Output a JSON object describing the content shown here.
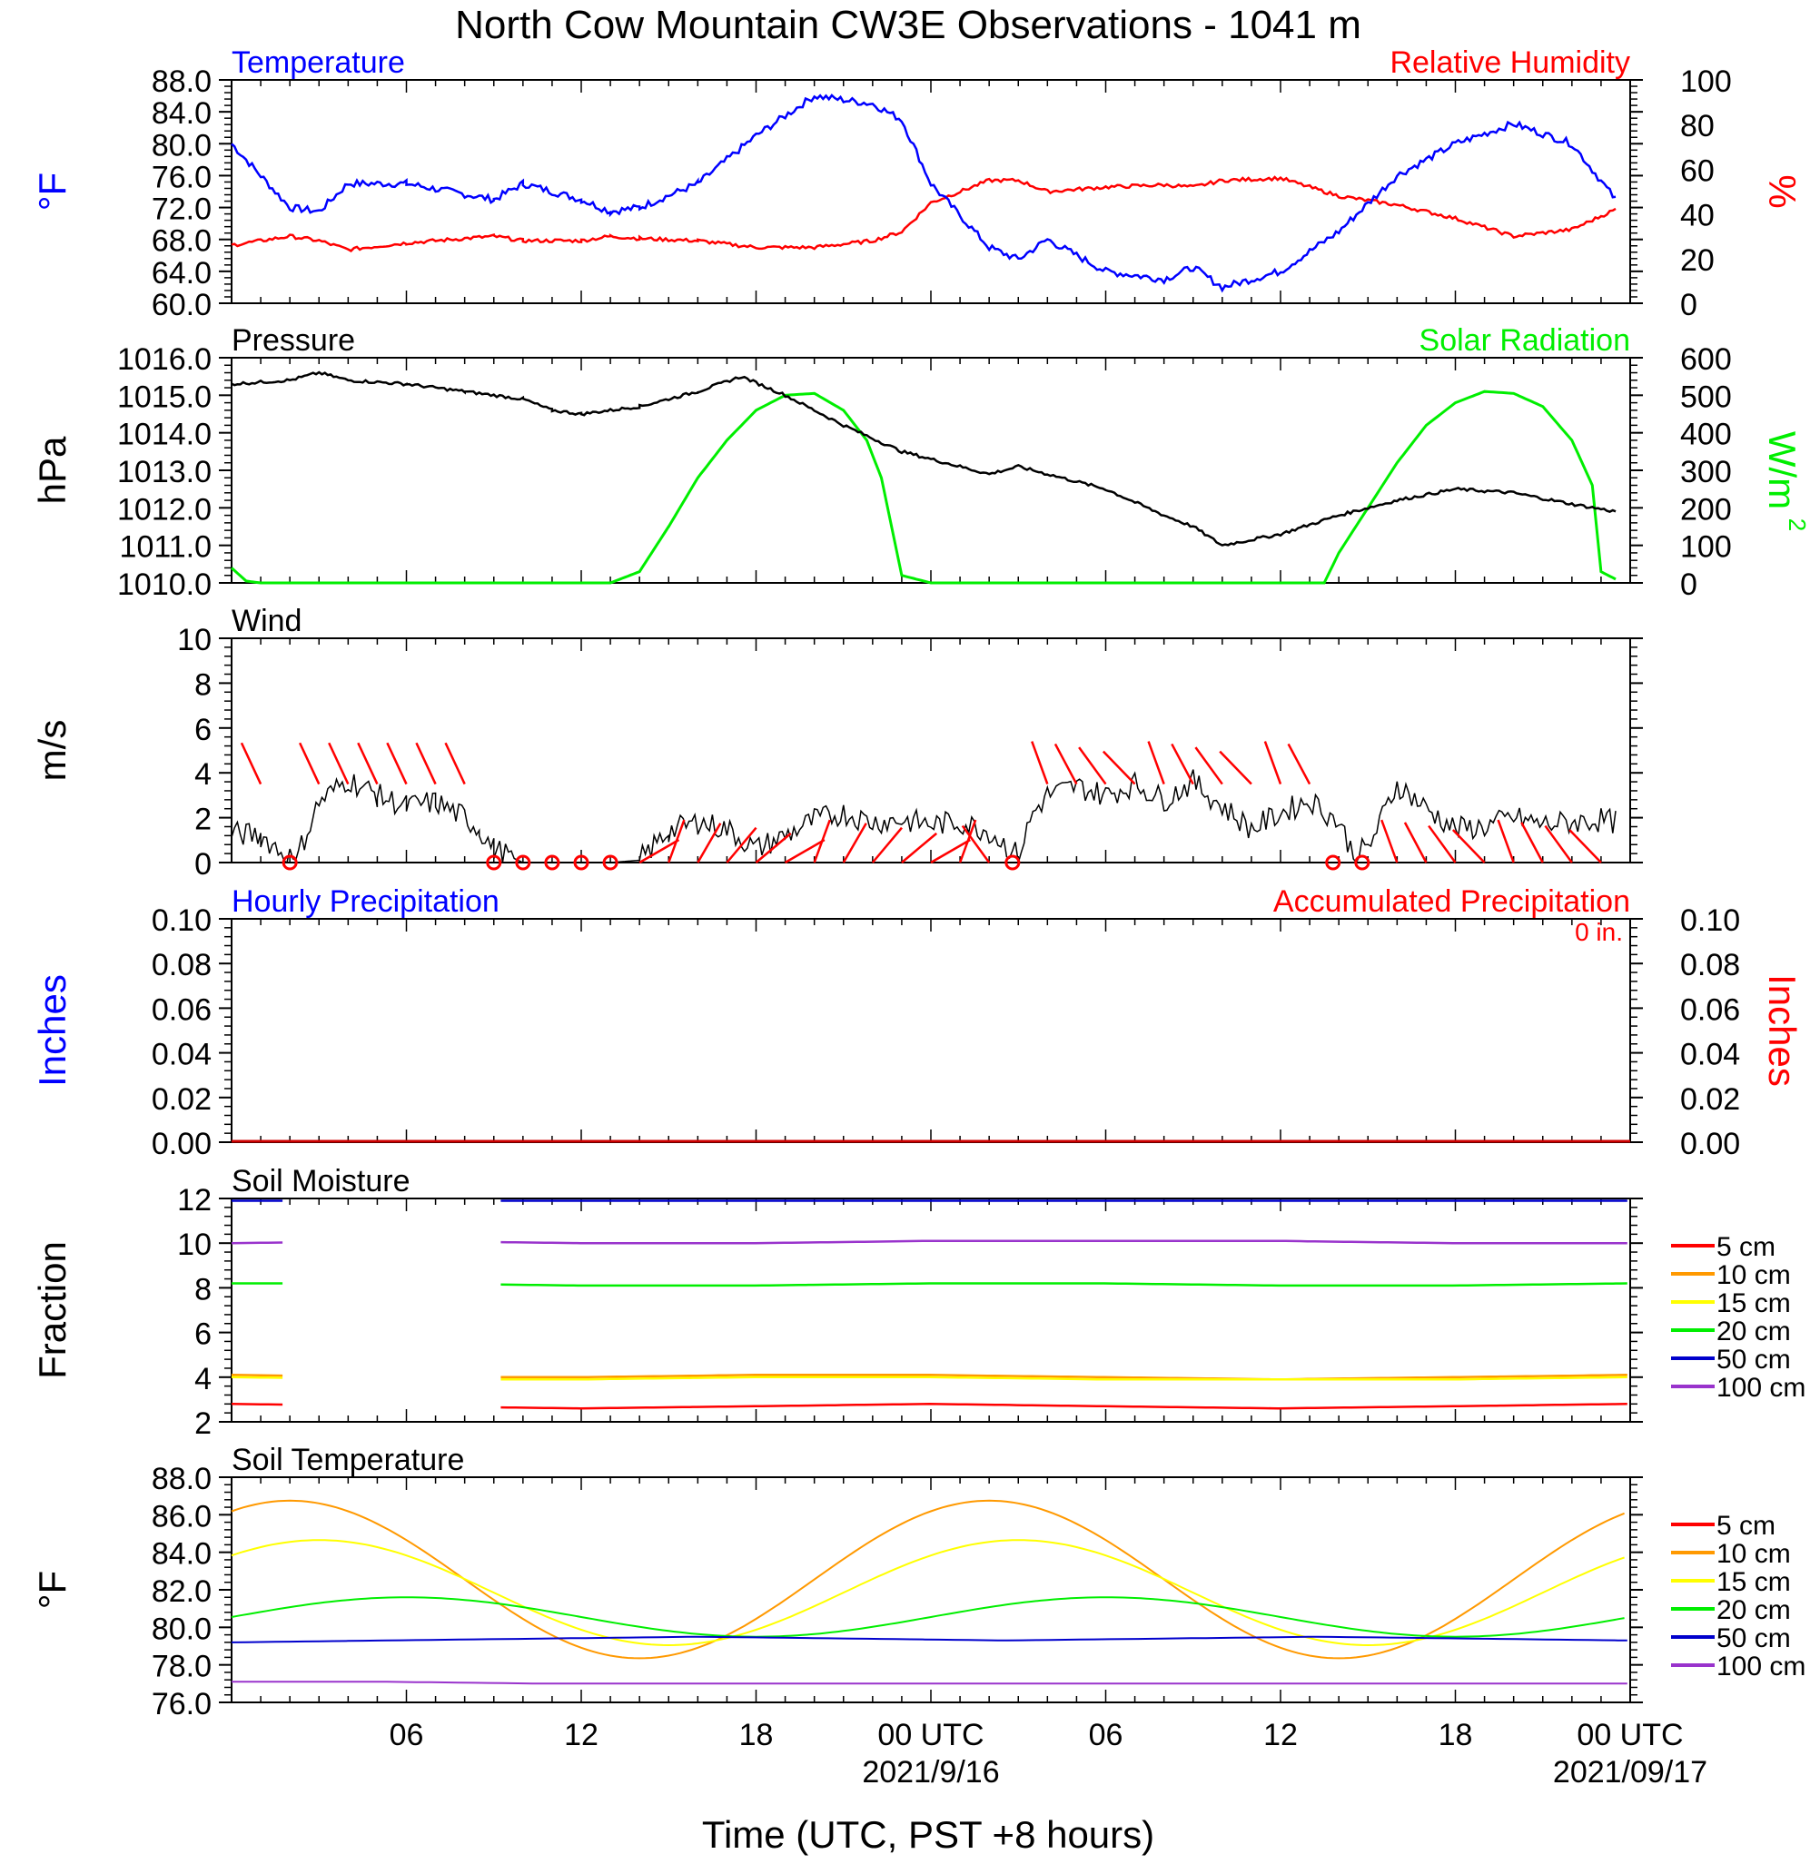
{
  "figure": {
    "title": "North Cow Mountain CW3E Observations - 1041 m",
    "x_axis_label": "Time (UTC, PST +8 hours)",
    "x_ticks": [
      "06",
      "12",
      "18",
      "00 UTC",
      "06",
      "12",
      "18",
      "00 UTC"
    ],
    "x_dates": [
      "2021/9/16",
      "2021/09/17"
    ],
    "accum_total_label": "0 in."
  },
  "colors": {
    "temperature": "#0000ff",
    "humidity": "#ff0000",
    "pressure": "#000000",
    "solar": "#00ee00",
    "wind_barb": "#ff0000",
    "soil_5cm": "#ff0000",
    "soil_10cm": "#ff9900",
    "soil_15cm": "#ffff00",
    "soil_20cm": "#00ee00",
    "soil_50cm": "#0000cc",
    "soil_100cm": "#9933cc"
  },
  "chart_data": [
    {
      "type": "line",
      "title_left": "Temperature",
      "title_right": "Relative Humidity",
      "ylabel_left": "oF",
      "ylabel_right": "%",
      "ylim_left": [
        60,
        88
      ],
      "ylim_right": [
        0,
        100
      ],
      "x_hours_from_0000_utc_sep15": [
        0,
        2,
        3,
        4,
        6,
        9,
        10,
        12,
        13,
        14,
        16,
        18,
        20,
        22,
        23,
        24,
        26,
        27,
        28,
        30,
        32,
        33,
        34,
        36,
        38,
        40,
        42,
        44,
        46,
        47.5
      ],
      "series": [
        {
          "name": "Temperature",
          "axis": "left",
          "values": [
            80,
            72,
            71.5,
            75,
            75,
            73,
            75,
            73,
            71.5,
            72,
            75,
            81,
            86,
            85,
            83,
            75,
            67,
            65.5,
            68,
            64,
            63,
            64.5,
            62,
            64,
            69,
            76,
            80,
            82.5,
            80,
            73
          ]
        },
        {
          "name": "Relative Humidity",
          "axis": "right",
          "values": [
            26,
            30,
            28,
            24,
            27,
            30,
            28,
            28,
            30,
            29,
            28,
            25,
            25,
            28,
            32,
            45,
            55,
            55,
            50,
            52,
            53,
            52,
            55,
            56,
            48,
            44,
            38,
            30,
            33,
            42
          ]
        }
      ]
    },
    {
      "type": "line",
      "title_left": "Pressure",
      "title_right": "Solar Radiation",
      "ylabel_left": "hPa",
      "ylabel_right": "W/m2",
      "ylim_left": [
        1010,
        1016
      ],
      "ylim_right": [
        0,
        600
      ],
      "x_hours_from_0000_utc_sep15": [
        0,
        2,
        3,
        4,
        6,
        8,
        10,
        11,
        12,
        14,
        16,
        17.5,
        19,
        21,
        23,
        26,
        27,
        28,
        30,
        32,
        33,
        34,
        36,
        38,
        40,
        42,
        44,
        46,
        47.5
      ],
      "series": [
        {
          "name": "Pressure",
          "axis": "left",
          "values": [
            1015.3,
            1015.4,
            1015.6,
            1015.4,
            1015.3,
            1015.1,
            1014.9,
            1014.6,
            1014.5,
            1014.7,
            1015.1,
            1015.5,
            1015,
            1014.2,
            1013.5,
            1012.9,
            1013.1,
            1012.9,
            1012.5,
            1011.8,
            1011.5,
            1011.0,
            1011.3,
            1011.8,
            1012.2,
            1012.5,
            1012.4,
            1012.1,
            1011.9
          ]
        },
        {
          "name": "Solar Radiation",
          "axis": "right",
          "x_hours_from_0000_utc_sep15": [
            0,
            0.5,
            1,
            13,
            14,
            15,
            16,
            17,
            18,
            19,
            20,
            21,
            21.8,
            22.3,
            23,
            24,
            37.5,
            38,
            39,
            40,
            41,
            42,
            43,
            44,
            45,
            46,
            46.7,
            47,
            47.5
          ],
          "values": [
            40,
            5,
            0,
            0,
            30,
            150,
            280,
            380,
            460,
            500,
            505,
            460,
            380,
            280,
            20,
            0,
            0,
            80,
            200,
            320,
            420,
            480,
            510,
            505,
            470,
            380,
            260,
            30,
            10
          ]
        }
      ]
    },
    {
      "type": "line",
      "title_left": "Wind",
      "ylabel_left": "m/s",
      "ylim_left": [
        0,
        10
      ],
      "x_hours_from_0000_utc_sep15": [
        0,
        1,
        1.8,
        2.2,
        3,
        4,
        5,
        6,
        7,
        8,
        8.5,
        9,
        10,
        12,
        13,
        14,
        15,
        16,
        17,
        18,
        19,
        20,
        21,
        22,
        23,
        24,
        25,
        26,
        27,
        27.5,
        28,
        29,
        30,
        31,
        32,
        33,
        34,
        35,
        36,
        37,
        38,
        38.5,
        39,
        40,
        41,
        42,
        43,
        44,
        45,
        46,
        47,
        47.5
      ],
      "series": [
        {
          "name": "Wind Speed",
          "axis": "left",
          "values": [
            1.3,
            1.2,
            0.4,
            0.1,
            2.7,
            3.7,
            3.0,
            2.5,
            2.7,
            2.0,
            1.5,
            0.6,
            0,
            0,
            0,
            0.1,
            1.4,
            1.8,
            1.5,
            0.6,
            1.2,
            1.9,
            2.2,
            1.8,
            1.9,
            1.7,
            1.8,
            1.4,
            0.3,
            2.2,
            3.0,
            3.4,
            3.0,
            3.5,
            2.8,
            3.6,
            2.5,
            1.5,
            2.2,
            2.8,
            1.8,
            0.4,
            0.6,
            3.5,
            2.4,
            1.5,
            1.6,
            2.0,
            1.7,
            1.8,
            1.9,
            1.8
          ]
        }
      ],
      "calm_markers_hours": [
        2,
        9,
        10,
        11,
        12,
        13,
        26.8,
        37.8,
        38.8
      ]
    },
    {
      "type": "line",
      "title_left": "Hourly Precipitation",
      "title_right": "Accumulated Precipitation",
      "ylabel_left": "Inches",
      "ylabel_right": "Inches",
      "ylim_left": [
        0,
        0.1
      ],
      "ylim_right": [
        0,
        0.1
      ],
      "series": [
        {
          "name": "Hourly Precipitation",
          "axis": "left",
          "values": [
            0,
            0
          ]
        },
        {
          "name": "Accumulated Precipitation",
          "axis": "right",
          "values": [
            0,
            0
          ]
        }
      ]
    },
    {
      "type": "line",
      "title_left": "Soil Moisture",
      "ylabel_left": "Fraction",
      "ylim_left": [
        2,
        12
      ],
      "gaps_hours": [
        [
          2,
          9
        ]
      ],
      "series": [
        {
          "name": "5 cm",
          "values": [
            2.8,
            2.7,
            2.6,
            2.7,
            2.8,
            2.7,
            2.6,
            2.7,
            2.8
          ]
        },
        {
          "name": "10 cm",
          "values": [
            4.1,
            4.0,
            4.0,
            4.1,
            4.1,
            4.0,
            3.9,
            4.0,
            4.1
          ]
        },
        {
          "name": "15 cm",
          "values": [
            4.0,
            3.9,
            3.9,
            4.0,
            4.0,
            3.9,
            3.9,
            3.9,
            4.0
          ]
        },
        {
          "name": "20 cm",
          "values": [
            8.2,
            8.2,
            8.1,
            8.1,
            8.2,
            8.2,
            8.1,
            8.1,
            8.2
          ]
        },
        {
          "name": "50 cm",
          "values": [
            11.9,
            11.9,
            11.9,
            11.9,
            11.9,
            11.9,
            11.9,
            11.9,
            11.9
          ]
        },
        {
          "name": "100 cm",
          "values": [
            10.0,
            10.1,
            10.0,
            10.0,
            10.1,
            10.1,
            10.1,
            10.0,
            10.0
          ]
        }
      ]
    },
    {
      "type": "line",
      "title_left": "Soil Temperature",
      "ylabel_left": "oF",
      "ylim_left": [
        76,
        88
      ],
      "series": [
        {
          "name": "5 cm",
          "values": []
        },
        {
          "name": "10 cm",
          "curve": {
            "mean": 82.55,
            "amp": 4.2,
            "peak_hours": [
              2,
              26
            ]
          }
        },
        {
          "name": "15 cm",
          "curve": {
            "mean": 81.85,
            "amp": 2.8,
            "peak_hours": [
              3,
              27
            ]
          }
        },
        {
          "name": "20 cm",
          "curve": {
            "mean": 80.55,
            "amp": 1.05,
            "peak_hours": [
              6,
              30
            ]
          }
        },
        {
          "name": "50 cm",
          "values": [
            79.2,
            79.3,
            79.4,
            79.5,
            79.4,
            79.3,
            79.4,
            79.5,
            79.4,
            79.3
          ]
        },
        {
          "name": "100 cm",
          "values": [
            77.1,
            77.1,
            77.0,
            77.0,
            77.0,
            77.0,
            77.0,
            77.0,
            77.0,
            77.0
          ]
        }
      ]
    }
  ],
  "panels": [
    {
      "key": "temp",
      "left_title": "Temperature",
      "right_title": "Relative Humidity",
      "left_ylabel": "°F",
      "right_ylabel": "%",
      "left_ticks": [
        "88.0",
        "84.0",
        "80.0",
        "76.0",
        "72.0",
        "68.0",
        "64.0",
        "60.0"
      ],
      "right_ticks": [
        "100",
        "80",
        "60",
        "40",
        "20",
        "0"
      ]
    },
    {
      "key": "pres",
      "left_title": "Pressure",
      "right_title": "Solar Radiation",
      "left_ylabel": "hPa",
      "right_ylabel": "W/m",
      "left_ticks": [
        "1016.0",
        "1015.0",
        "1014.0",
        "1013.0",
        "1012.0",
        "1011.0",
        "1010.0"
      ],
      "right_ticks": [
        "600",
        "500",
        "400",
        "300",
        "200",
        "100",
        "0"
      ]
    },
    {
      "key": "wind",
      "left_title": "Wind",
      "left_ylabel": "m/s",
      "left_ticks": [
        "10",
        "8",
        "6",
        "4",
        "2",
        "0"
      ]
    },
    {
      "key": "precip",
      "left_title": "Hourly Precipitation",
      "right_title": "Accumulated Precipitation",
      "left_ylabel": "Inches",
      "right_ylabel": "Inches",
      "left_ticks": [
        "0.10",
        "0.08",
        "0.06",
        "0.04",
        "0.02",
        "0.00"
      ],
      "right_ticks": [
        "0.10",
        "0.08",
        "0.06",
        "0.04",
        "0.02",
        "0.00"
      ]
    },
    {
      "key": "soilm",
      "left_title": "Soil Moisture",
      "left_ylabel": "Fraction",
      "left_ticks": [
        "12",
        "10",
        "8",
        "6",
        "4",
        "2"
      ],
      "legend": [
        "5 cm",
        "10 cm",
        "15 cm",
        "20 cm",
        "50 cm",
        "100 cm"
      ]
    },
    {
      "key": "soilt",
      "left_title": "Soil Temperature",
      "left_ylabel": "°F",
      "left_ticks": [
        "88.0",
        "86.0",
        "84.0",
        "82.0",
        "80.0",
        "78.0",
        "76.0"
      ],
      "legend": [
        "5 cm",
        "10 cm",
        "15 cm",
        "20 cm",
        "50 cm",
        "100 cm"
      ]
    }
  ]
}
